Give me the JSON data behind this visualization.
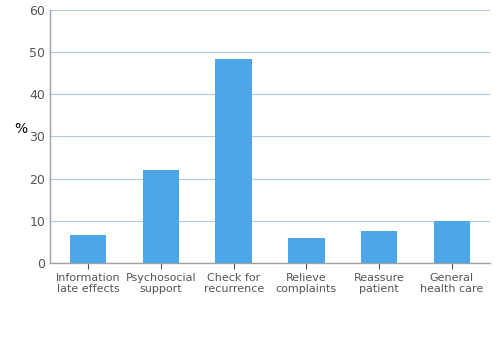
{
  "categories": [
    "Information\nlate effects",
    "Psychosocial\nsupport",
    "Check for\nrecurrence",
    "Relieve\ncomplaints",
    "Reassure\npatient",
    "General\nhealth care"
  ],
  "values": [
    6.5,
    22,
    48.5,
    5.8,
    7.5,
    10
  ],
  "bar_color": "#4da6e8",
  "ylabel": "%",
  "ylim": [
    0,
    60
  ],
  "yticks": [
    0,
    10,
    20,
    30,
    40,
    50,
    60
  ],
  "grid_color": "#aec8e8",
  "spine_color": "#a0a0a0",
  "background_color": "#ffffff",
  "bar_width": 0.5,
  "tick_fontsize": 9,
  "xlabel_fontsize": 8
}
